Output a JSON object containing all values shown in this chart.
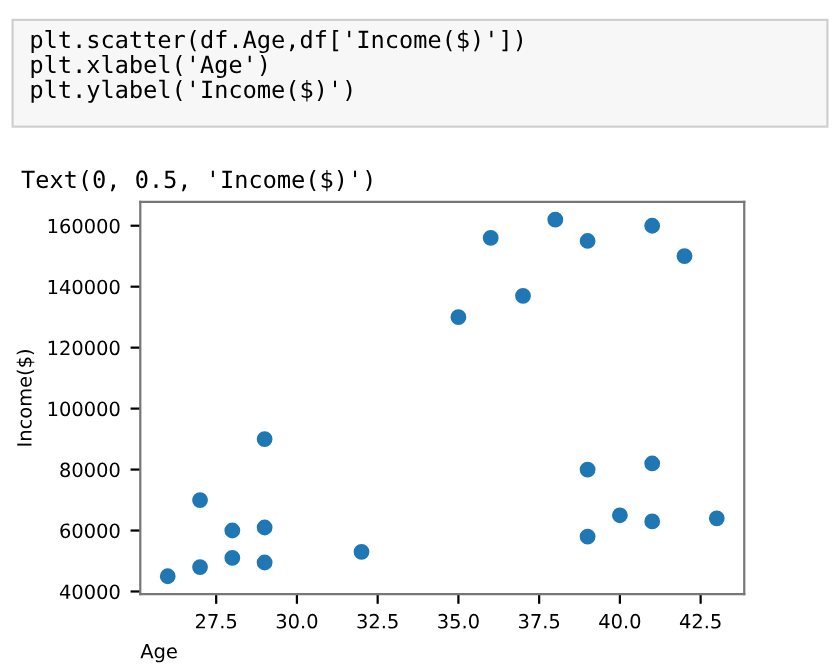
{
  "chart_data": {
    "type": "scatter",
    "xlabel": "Age",
    "ylabel": "Income($)",
    "annotations": [
      "plt.scatter(df.Age,df['Income($)'])\nplt.xlabel('Age')\nplt.ylabel('Income($)')",
      "Text(0, 0.5, 'Income($)')"
    ],
    "x": [
      26,
      27,
      27,
      28,
      28,
      29,
      29,
      29,
      32,
      35,
      36,
      37,
      38,
      39,
      39,
      39,
      40,
      41,
      41,
      41,
      42,
      43
    ],
    "series": [
      {
        "color": "#1f77b4",
        "values": [
          45000,
          48000,
          70000,
          51000,
          60000,
          49500,
          61000,
          90000,
          53000,
          130000,
          156000,
          137000,
          162000,
          155000,
          80000,
          58000,
          65000,
          160000,
          82000,
          63000,
          150000,
          64000
        ]
      }
    ],
    "xlim": [
      25.15,
      43.85
    ],
    "ylim": [
      39150,
      167850
    ],
    "xticks": [
      {
        "value": 27.5,
        "label": "27.5"
      },
      {
        "value": 30,
        "label": "30.0"
      },
      {
        "value": 32.5,
        "label": "32.5"
      },
      {
        "value": 35,
        "label": "35.0"
      },
      {
        "value": 37.5,
        "label": "37.5"
      },
      {
        "value": 40,
        "label": "40.0"
      },
      {
        "value": 42.5,
        "label": "42.5"
      }
    ],
    "yticks": [
      40000,
      60000,
      80000,
      100000,
      120000,
      140000,
      160000
    ],
    "marker": "circle",
    "grid": false,
    "legend": false
  }
}
